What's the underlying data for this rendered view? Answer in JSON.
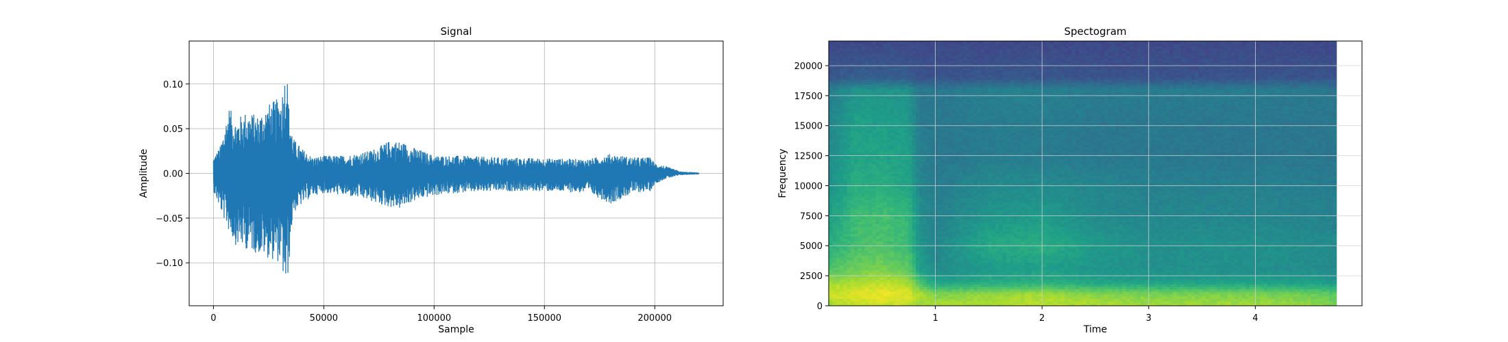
{
  "chart_data": [
    {
      "type": "line",
      "title": "Signal",
      "xlabel": "Sample",
      "ylabel": "Amplitude",
      "xlim": [
        -11000,
        231000
      ],
      "ylim": [
        -0.148,
        0.148
      ],
      "grid": true,
      "color": "#1f77b4",
      "x_ticks": [
        0,
        50000,
        100000,
        150000,
        200000
      ],
      "x_tick_labels": [
        "0",
        "50000",
        "100000",
        "150000",
        "200000"
      ],
      "y_ticks": [
        -0.1,
        -0.05,
        0.0,
        0.05,
        0.1
      ],
      "y_tick_labels": [
        "−0.10",
        "−0.05",
        "0.00",
        "0.05",
        "0.10"
      ],
      "envelope": {
        "x": [
          0,
          3000,
          7000,
          10000,
          15000,
          20000,
          25000,
          30000,
          32000,
          33000,
          34000,
          36000,
          40000,
          45000,
          50000,
          60000,
          70000,
          75000,
          80000,
          85000,
          90000,
          95000,
          100000,
          110000,
          130000,
          150000,
          170000,
          180000,
          190000,
          198000,
          200000,
          205000,
          212000,
          220000
        ],
        "upper": [
          0.018,
          0.03,
          0.075,
          0.06,
          0.07,
          0.065,
          0.078,
          0.085,
          0.1,
          0.134,
          0.08,
          0.04,
          0.028,
          0.018,
          0.02,
          0.02,
          0.025,
          0.03,
          0.037,
          0.036,
          0.03,
          0.025,
          0.02,
          0.02,
          0.018,
          0.017,
          0.016,
          0.022,
          0.018,
          0.018,
          0.012,
          0.008,
          0.002,
          0.001
        ],
        "lower": [
          -0.02,
          -0.04,
          -0.065,
          -0.08,
          -0.085,
          -0.09,
          -0.095,
          -0.1,
          -0.12,
          -0.135,
          -0.11,
          -0.045,
          -0.035,
          -0.025,
          -0.022,
          -0.025,
          -0.03,
          -0.035,
          -0.038,
          -0.04,
          -0.032,
          -0.028,
          -0.025,
          -0.022,
          -0.02,
          -0.02,
          -0.022,
          -0.034,
          -0.022,
          -0.02,
          -0.012,
          -0.006,
          -0.002,
          -0.001
        ]
      }
    },
    {
      "type": "heatmap",
      "title": "Spectogram",
      "xlabel": "Time",
      "ylabel": "Frequency",
      "xlim": [
        0,
        5.0
      ],
      "ylim": [
        0,
        22050
      ],
      "data_x_range": [
        0.0,
        4.76
      ],
      "grid": true,
      "colormap": "viridis",
      "x_ticks": [
        1,
        2,
        3,
        4
      ],
      "x_tick_labels": [
        "1",
        "2",
        "3",
        "4"
      ],
      "y_ticks": [
        0,
        2500,
        5000,
        7500,
        10000,
        12500,
        15000,
        17500,
        20000
      ],
      "y_tick_labels": [
        "0",
        "2500",
        "5000",
        "7500",
        "10000",
        "12500",
        "15000",
        "17500",
        "20000"
      ],
      "intensity": {
        "time": [
          0.0,
          0.25,
          0.5,
          0.75,
          0.85,
          1.0,
          1.5,
          2.0,
          2.5,
          3.0,
          3.5,
          4.0,
          4.5,
          4.76
        ],
        "frequency": [
          0,
          1000,
          2000,
          3000,
          5000,
          7500,
          10000,
          12500,
          15000,
          18000,
          19000,
          22050
        ],
        "values": [
          [
            0.85,
            0.92,
            0.85,
            0.72,
            0.62,
            0.55,
            0.5,
            0.48,
            0.46,
            0.42,
            0.28,
            0.22
          ],
          [
            0.9,
            0.96,
            0.88,
            0.78,
            0.7,
            0.68,
            0.62,
            0.58,
            0.56,
            0.52,
            0.3,
            0.22
          ],
          [
            0.92,
            0.98,
            0.9,
            0.8,
            0.72,
            0.7,
            0.62,
            0.58,
            0.56,
            0.52,
            0.3,
            0.22
          ],
          [
            0.9,
            0.95,
            0.86,
            0.75,
            0.68,
            0.66,
            0.58,
            0.56,
            0.54,
            0.5,
            0.29,
            0.22
          ],
          [
            0.85,
            0.88,
            0.72,
            0.58,
            0.52,
            0.5,
            0.46,
            0.44,
            0.42,
            0.4,
            0.26,
            0.22
          ],
          [
            0.88,
            0.8,
            0.56,
            0.48,
            0.46,
            0.44,
            0.42,
            0.4,
            0.4,
            0.4,
            0.26,
            0.22
          ],
          [
            0.88,
            0.84,
            0.6,
            0.54,
            0.6,
            0.52,
            0.48,
            0.42,
            0.42,
            0.44,
            0.27,
            0.22
          ],
          [
            0.9,
            0.86,
            0.62,
            0.56,
            0.62,
            0.54,
            0.48,
            0.42,
            0.42,
            0.44,
            0.27,
            0.22
          ],
          [
            0.88,
            0.82,
            0.58,
            0.52,
            0.54,
            0.48,
            0.46,
            0.4,
            0.4,
            0.42,
            0.26,
            0.22
          ],
          [
            0.86,
            0.8,
            0.56,
            0.5,
            0.5,
            0.46,
            0.44,
            0.4,
            0.4,
            0.42,
            0.26,
            0.22
          ],
          [
            0.86,
            0.8,
            0.56,
            0.5,
            0.5,
            0.46,
            0.44,
            0.4,
            0.4,
            0.42,
            0.26,
            0.22
          ],
          [
            0.86,
            0.8,
            0.56,
            0.5,
            0.5,
            0.46,
            0.44,
            0.4,
            0.4,
            0.42,
            0.26,
            0.22
          ],
          [
            0.84,
            0.78,
            0.55,
            0.49,
            0.49,
            0.45,
            0.43,
            0.4,
            0.4,
            0.41,
            0.26,
            0.22
          ],
          [
            0.8,
            0.74,
            0.54,
            0.48,
            0.48,
            0.44,
            0.42,
            0.4,
            0.4,
            0.4,
            0.26,
            0.22
          ]
        ]
      }
    }
  ]
}
